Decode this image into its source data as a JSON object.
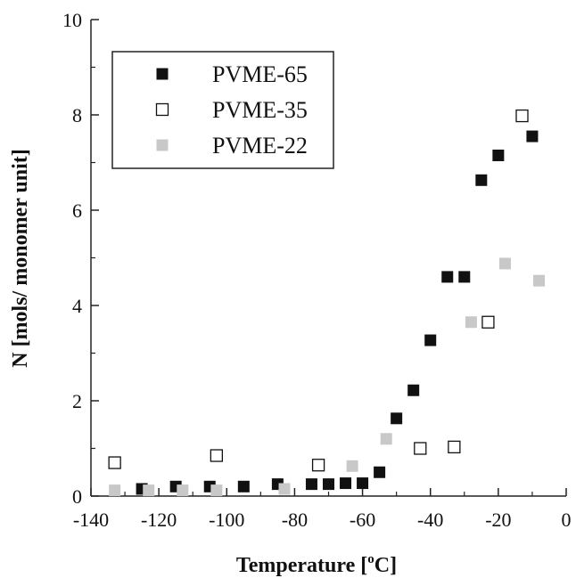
{
  "chart_data": {
    "type": "scatter",
    "title": "",
    "xlabel": "Temperature [",
    "xlabel_sup": "o",
    "xlabel_end": "C]",
    "ylabel": "N [mols/ monomer unit]",
    "xlim": [
      -140,
      0
    ],
    "ylim": [
      0,
      10
    ],
    "x_ticks": [
      "-140",
      "-120",
      "-100",
      "-80",
      "-60",
      "-40",
      "-20",
      "0"
    ],
    "y_ticks": [
      "0",
      "2",
      "4",
      "6",
      "8",
      "10"
    ],
    "grid": false,
    "legend": "top-left",
    "series": [
      {
        "name": "PVME-65",
        "marker": "filled-square",
        "color": "#111111",
        "points": [
          [
            -125,
            0.15
          ],
          [
            -115,
            0.2
          ],
          [
            -105,
            0.2
          ],
          [
            -95,
            0.2
          ],
          [
            -85,
            0.25
          ],
          [
            -75,
            0.25
          ],
          [
            -70,
            0.25
          ],
          [
            -65,
            0.27
          ],
          [
            -60,
            0.27
          ],
          [
            -55,
            0.5
          ],
          [
            -50,
            1.63
          ],
          [
            -45,
            2.22
          ],
          [
            -40,
            3.27
          ],
          [
            -35,
            4.6
          ],
          [
            -30,
            4.6
          ],
          [
            -25,
            6.63
          ],
          [
            -20,
            7.15
          ],
          [
            -10,
            7.55
          ]
        ]
      },
      {
        "name": "PVME-35",
        "marker": "open-square",
        "color": "#111111",
        "points": [
          [
            -133,
            0.7
          ],
          [
            -103,
            0.85
          ],
          [
            -73,
            0.65
          ],
          [
            -43,
            1.0
          ],
          [
            -33,
            1.03
          ],
          [
            -23,
            3.65
          ],
          [
            -13,
            7.98
          ]
        ]
      },
      {
        "name": "PVME-22",
        "marker": "filled-square",
        "color": "#c8c8c8",
        "points": [
          [
            -133,
            0.12
          ],
          [
            -123,
            0.12
          ],
          [
            -113,
            0.12
          ],
          [
            -103,
            0.12
          ],
          [
            -83,
            0.15
          ],
          [
            -63,
            0.63
          ],
          [
            -53,
            1.2
          ],
          [
            -28,
            3.65
          ],
          [
            -18,
            4.88
          ],
          [
            -8,
            4.52
          ]
        ]
      }
    ]
  }
}
